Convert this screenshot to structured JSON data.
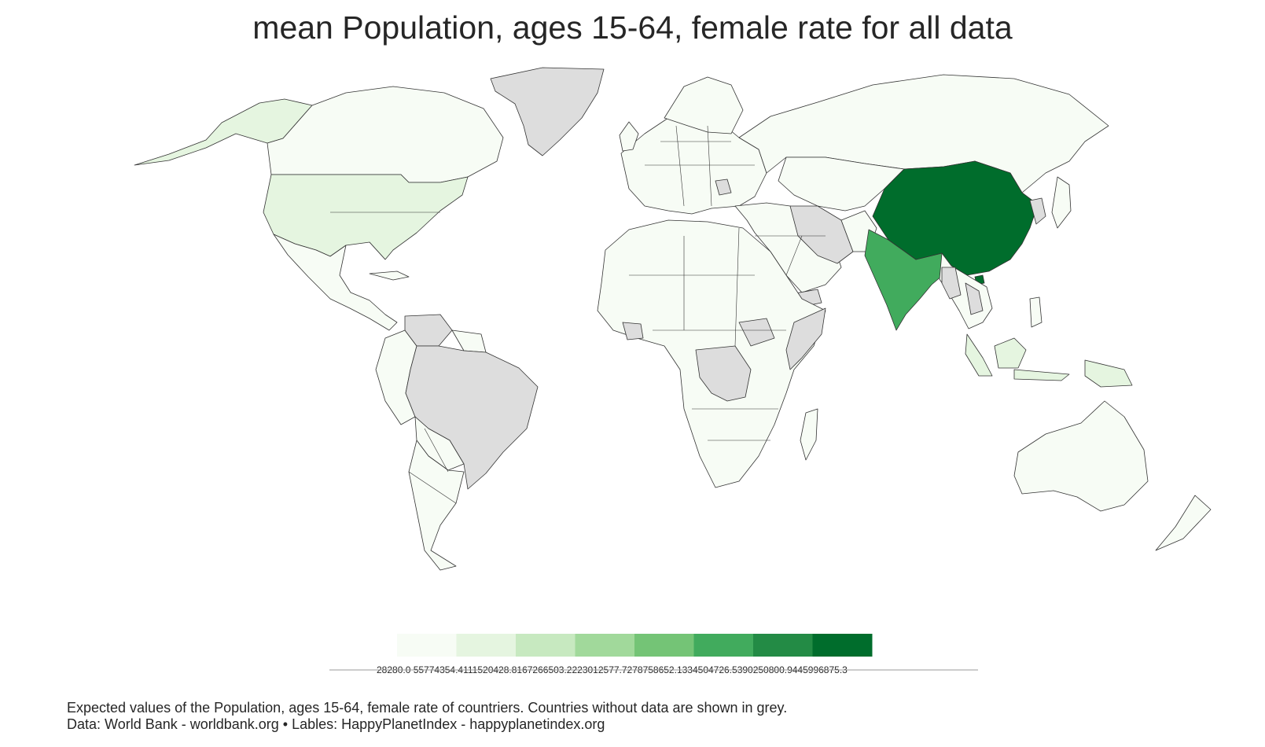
{
  "title": "mean Population, ages 15-64, female rate for all data",
  "legend": {
    "colors": [
      "#f7fcf5",
      "#e5f5e0",
      "#c7e9c0",
      "#a1d99b",
      "#74c476",
      "#41ab5d",
      "#238b45",
      "#006d2c"
    ],
    "tick_labels": [
      "28280.0",
      "55774354.4",
      "111520428.8",
      "167266503.2",
      "223012577.7",
      "278758652.1",
      "334504726.5",
      "390250800.9",
      "445996875.3"
    ],
    "tick_labels_as_printed": "28280.0 55774354.4111520428.8167266503.2223012577.7278758652.1334504726.5390250800.9445996875.3"
  },
  "colors": {
    "no_data": "#dddddd",
    "outline": "#333333",
    "title_text": "#262626"
  },
  "chart_data": {
    "type": "choropleth",
    "title": "mean Population, ages 15-64, female rate for all data",
    "scale": {
      "min": 28280.0,
      "max": 445996875.3,
      "bins": 8
    },
    "regions": [
      {
        "name": "China",
        "bin": 8,
        "approx_value": 445000000
      },
      {
        "name": "India",
        "bin": 6,
        "approx_value": 330000000
      },
      {
        "name": "United States",
        "bin": 2,
        "approx_value": 100000000
      },
      {
        "name": "Indonesia",
        "bin": 2,
        "approx_value": 80000000
      },
      {
        "name": "Alaska (United States)",
        "bin": 2,
        "approx_value": 100000000
      },
      {
        "name": "Russia",
        "bin": 1,
        "approx_value": 50000000
      },
      {
        "name": "Canada",
        "bin": 1,
        "approx_value": 10000000
      },
      {
        "name": "Australia",
        "bin": 1,
        "approx_value": 7000000
      }
    ],
    "no_data_regions": [
      "Brazil",
      "Venezuela",
      "Greenland",
      "Iran",
      "Democratic Republic of the Congo",
      "Myanmar",
      "Somalia",
      "Yemen",
      "South Sudan",
      "North Korea",
      "Malaysia",
      "Uruguay",
      "Guinea",
      "Cambodia",
      "Laos",
      "Serbia",
      "Syria",
      "Ethiopia"
    ]
  },
  "footnote": {
    "line1": "Expected values of the Population, ages 15-64, female rate of countriers. Countries without data are shown in grey.",
    "line2": "Data: World Bank - worldbank.org • Lables: HappyPlanetIndex - happyplanetindex.org"
  }
}
